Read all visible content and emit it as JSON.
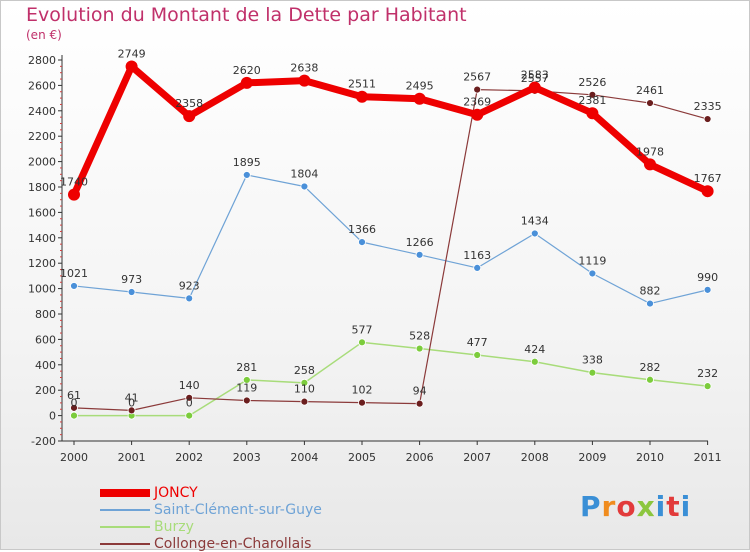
{
  "header": {
    "title": "Evolution du Montant de la Dette par Habitant",
    "unit": "(en €)"
  },
  "logo": {
    "text": "Proxiti",
    "colors": [
      "#3a8fd6",
      "#f08c1e",
      "#e23b3b",
      "#8cc63e",
      "#3a8fd6",
      "#e23b3b",
      "#3a8fd6"
    ]
  },
  "chart_data": {
    "type": "line",
    "title": "Evolution du Montant de la Dette par Habitant",
    "subtitle": "(en €)",
    "xlabel": "",
    "ylabel": "",
    "x": [
      "2000",
      "2001",
      "2002",
      "2003",
      "2004",
      "2005",
      "2006",
      "2007",
      "2008",
      "2009",
      "2010",
      "2011"
    ],
    "ylim": [
      -200,
      2800
    ],
    "yticks": [
      -200,
      0,
      200,
      400,
      600,
      800,
      1000,
      1200,
      1400,
      1600,
      1800,
      2000,
      2200,
      2400,
      2600,
      2800
    ],
    "grid": false,
    "legend_position": "bottom-left",
    "series": [
      {
        "name": "JONCY",
        "color": "#ee0000",
        "marker": "#ee0000",
        "width": 7,
        "radius": 6,
        "values": [
          1740,
          2749,
          2358,
          2620,
          2638,
          2511,
          2495,
          2369,
          2583,
          2381,
          1978,
          1767
        ]
      },
      {
        "name": "Saint-Clément-sur-Guye",
        "color": "#6fa3d6",
        "marker": "#4a90d9",
        "width": 1.2,
        "radius": 3.5,
        "values": [
          1021,
          973,
          923,
          1895,
          1804,
          1366,
          1266,
          1163,
          1434,
          1119,
          882,
          990
        ]
      },
      {
        "name": "Burzy",
        "color": "#a8dc7a",
        "marker": "#7ccc3c",
        "width": 1.5,
        "radius": 3.5,
        "values": [
          0,
          0,
          0,
          281,
          258,
          577,
          528,
          477,
          424,
          338,
          282,
          232
        ]
      },
      {
        "name": "Collonge-en-Charollais",
        "color": "#8b3a3a",
        "marker": "#6b1e1e",
        "width": 1.2,
        "radius": 3.5,
        "values": [
          61,
          41,
          140,
          119,
          110,
          102,
          94,
          2567,
          2557,
          2526,
          2461,
          2335
        ]
      }
    ],
    "data_labels": [
      {
        "series": 0,
        "labels": [
          "1740",
          "2749",
          "2358",
          "2620",
          "2638",
          "2511",
          "2495",
          "2369",
          "2583",
          "2381",
          "1978",
          "1767"
        ]
      },
      {
        "series": 1,
        "labels": [
          "1021",
          "973",
          "923",
          "1895",
          "1804",
          "1366",
          "1266",
          "1163",
          "1434",
          "1119",
          "882",
          "990"
        ]
      },
      {
        "series": 2,
        "labels": [
          "0",
          "0",
          "0",
          "281",
          "258",
          "577",
          "528",
          "477",
          "424",
          "338",
          "282",
          "232"
        ]
      },
      {
        "series": 3,
        "labels": [
          "61",
          "41",
          "140",
          "119",
          "110",
          "102",
          "94",
          "2567",
          "2557",
          "2526",
          "2461",
          "2335"
        ]
      }
    ]
  }
}
